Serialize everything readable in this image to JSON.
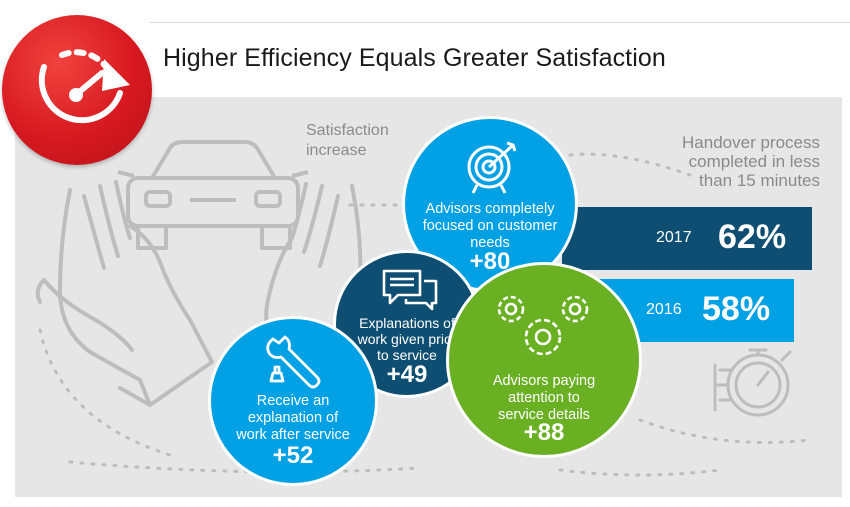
{
  "header": {
    "title": "Higher Efficiency Equals Greater Satisfaction",
    "badge_icon": "speedometer-icon",
    "accent_color": "#d71920"
  },
  "labels": {
    "satisfaction_line1": "Satisfaction",
    "satisfaction_line2": "increase",
    "handover_line1": "Handover process",
    "handover_line2": "completed in less",
    "handover_line3": "than 15 minutes"
  },
  "chart_data": [
    {
      "type": "bar",
      "orientation": "horizontal",
      "title": "Handover process completed in less than 15 minutes",
      "categories": [
        "2017",
        "2016"
      ],
      "values": [
        62,
        58
      ],
      "value_labels": [
        "62%",
        "58%"
      ],
      "unit": "%",
      "colors": [
        "#0f4e73",
        "#00a0e4"
      ]
    },
    {
      "type": "bubble",
      "title": "Satisfaction increase",
      "items": [
        {
          "label_lines": [
            "Advisors completely",
            "focused on customer",
            "needs"
          ],
          "value": 80,
          "value_label": "+80",
          "color": "#00a0e4",
          "icon": "target-icon"
        },
        {
          "label_lines": [
            "Explanations of",
            "work given prior",
            "to service"
          ],
          "value": 49,
          "value_label": "+49",
          "color": "#0f4e73",
          "icon": "chat-icon"
        },
        {
          "label_lines": [
            "Advisors paying",
            "attention to",
            "service details"
          ],
          "value": 88,
          "value_label": "+88",
          "color": "#6ab023",
          "icon": "gears-icon"
        },
        {
          "label_lines": [
            "Receive an",
            "explanation of",
            "work after service"
          ],
          "value": 52,
          "value_label": "+52",
          "color": "#00a0e4",
          "icon": "wrench-icon"
        }
      ]
    }
  ],
  "background_icons": [
    "car-icon",
    "hands-icon",
    "stopwatch-icon"
  ]
}
